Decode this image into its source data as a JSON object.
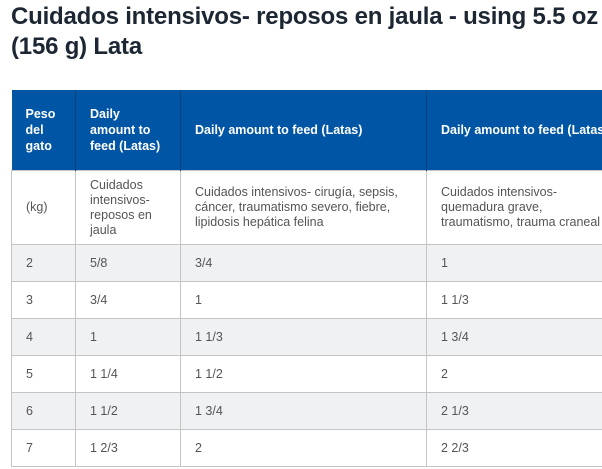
{
  "title": "Cuidados intensivos- reposos en jaula - using 5.5 oz (156 g) Lata",
  "table": {
    "headers": [
      "Peso del gato",
      "Daily amount to feed (Latas)",
      "Daily amount to feed (Latas)",
      "Daily amount to feed (Latas)"
    ],
    "subheaders": [
      "(kg)",
      "Cuidados intensivos- reposos en jaula",
      "Cuidados intensivos- cirugía, sepsis, cáncer, traumatismo severo, fiebre, lipidosis hepática felina",
      "Cuidados intensivos- quemadura grave, traumatismo, trauma craneal"
    ],
    "rows": [
      [
        "2",
        "5/8",
        "3/4",
        "1"
      ],
      [
        "3",
        "3/4",
        "1",
        "1 1/3"
      ],
      [
        "4",
        "1",
        "1 1/3",
        "1 3/4"
      ],
      [
        "5",
        "1 1/4",
        "1 1/2",
        "2"
      ],
      [
        "6",
        "1 1/2",
        "1 3/4",
        "2 1/3"
      ],
      [
        "7",
        "1 2/3",
        "2",
        "2 2/3"
      ]
    ]
  },
  "colors": {
    "header_bg": "#0055a5",
    "alt_row": "#f0f1f3",
    "title": "#1d2633"
  }
}
